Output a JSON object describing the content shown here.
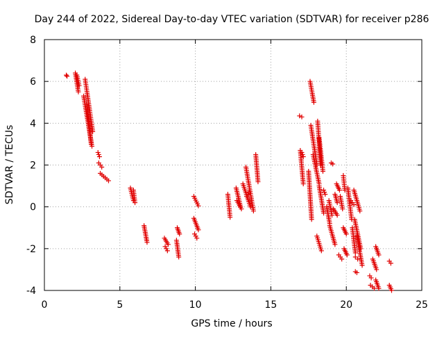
{
  "chart_data": {
    "type": "scatter",
    "title": "Day 244 of 2022, Sidereal Day-to-day VTEC variation (SDTVAR) for receiver p286",
    "xlabel": "GPS time / hours",
    "ylabel": "SDTVAR / TECUs",
    "xlim": [
      0,
      25
    ],
    "ylim": [
      -4,
      8
    ],
    "x_ticks": [
      0,
      5,
      10,
      15,
      20,
      25
    ],
    "y_ticks": [
      -4,
      -2,
      0,
      2,
      4,
      6,
      8
    ],
    "grid": true,
    "marker": "plus",
    "color": "#e00000",
    "series": [
      {
        "name": "SDTVAR",
        "segments": [
          {
            "x": [
              1.45,
              1.5
            ],
            "y": [
              6.3,
              6.25
            ]
          },
          {
            "x": [
              2.05,
              2.25
            ],
            "y": [
              6.4,
              5.5
            ]
          },
          {
            "x": [
              2.15,
              2.3
            ],
            "y": [
              6.3,
              5.8
            ]
          },
          {
            "x": [
              2.6,
              3.15
            ],
            "y": [
              5.3,
              2.9
            ]
          },
          {
            "x": [
              2.7,
              3.2
            ],
            "y": [
              6.1,
              3.6
            ]
          },
          {
            "x": [
              2.8,
              3.1
            ],
            "y": [
              4.9,
              3.0
            ]
          },
          {
            "x": [
              3.55,
              3.65
            ],
            "y": [
              2.6,
              2.4
            ]
          },
          {
            "x": [
              3.6,
              3.8
            ],
            "y": [
              2.1,
              1.9
            ]
          },
          {
            "x": [
              3.7,
              4.25
            ],
            "y": [
              1.6,
              1.25
            ]
          },
          {
            "x": [
              5.7,
              5.9
            ],
            "y": [
              0.9,
              0.3
            ]
          },
          {
            "x": [
              5.9,
              6.0
            ],
            "y": [
              0.8,
              0.2
            ]
          },
          {
            "x": [
              6.6,
              6.8
            ],
            "y": [
              -0.9,
              -1.7
            ]
          },
          {
            "x": [
              7.95,
              8.2
            ],
            "y": [
              -1.5,
              -1.8
            ]
          },
          {
            "x": [
              8.0,
              8.15
            ],
            "y": [
              -1.9,
              -2.1
            ]
          },
          {
            "x": [
              8.75,
              8.9
            ],
            "y": [
              -1.6,
              -2.4
            ]
          },
          {
            "x": [
              8.8,
              8.95
            ],
            "y": [
              -1.0,
              -1.3
            ]
          },
          {
            "x": [
              9.9,
              10.2
            ],
            "y": [
              0.5,
              0.05
            ]
          },
          {
            "x": [
              9.9,
              10.2
            ],
            "y": [
              -0.55,
              -1.1
            ]
          },
          {
            "x": [
              9.95,
              10.1
            ],
            "y": [
              -1.3,
              -1.5
            ]
          },
          {
            "x": [
              12.15,
              12.3
            ],
            "y": [
              0.6,
              -0.5
            ]
          },
          {
            "x": [
              12.7,
              13.0
            ],
            "y": [
              0.9,
              0.0
            ]
          },
          {
            "x": [
              12.75,
              13.05
            ],
            "y": [
              0.3,
              -0.1
            ]
          },
          {
            "x": [
              13.15,
              13.65
            ],
            "y": [
              1.1,
              0.0
            ]
          },
          {
            "x": [
              13.35,
              13.85
            ],
            "y": [
              1.9,
              -0.2
            ]
          },
          {
            "x": [
              13.4,
              13.55
            ],
            "y": [
              0.5,
              0.7
            ]
          },
          {
            "x": [
              14.0,
              14.15
            ],
            "y": [
              2.5,
              1.2
            ]
          },
          {
            "x": [
              16.9,
              17.05
            ],
            "y": [
              4.35,
              4.3
            ]
          },
          {
            "x": [
              16.95,
              17.15
            ],
            "y": [
              2.7,
              1.1
            ]
          },
          {
            "x": [
              17.05,
              17.15
            ],
            "y": [
              2.6,
              2.4
            ]
          },
          {
            "x": [
              17.5,
              17.7
            ],
            "y": [
              1.7,
              -0.6
            ]
          },
          {
            "x": [
              17.6,
              17.85
            ],
            "y": [
              6.0,
              5.0
            ]
          },
          {
            "x": [
              17.65,
              18.05
            ],
            "y": [
              3.9,
              2.0
            ]
          },
          {
            "x": [
              17.8,
              18.2
            ],
            "y": [
              2.5,
              1.1
            ]
          },
          {
            "x": [
              18.1,
              18.3
            ],
            "y": [
              4.1,
              2.0
            ]
          },
          {
            "x": [
              18.05,
              18.35
            ],
            "y": [
              -1.4,
              -2.1
            ]
          },
          {
            "x": [
              18.2,
              18.45
            ],
            "y": [
              3.3,
              1.7
            ]
          },
          {
            "x": [
              18.2,
              18.5
            ],
            "y": [
              1.0,
              -0.3
            ]
          },
          {
            "x": [
              18.5,
              18.6
            ],
            "y": [
              0.8,
              0.6
            ]
          },
          {
            "x": [
              18.7,
              18.9
            ],
            "y": [
              0.0,
              -0.8
            ]
          },
          {
            "x": [
              18.85,
              19.05
            ],
            "y": [
              0.3,
              -0.4
            ]
          },
          {
            "x": [
              18.9,
              19.25
            ],
            "y": [
              -0.9,
              -1.8
            ]
          },
          {
            "x": [
              19.0,
              19.1
            ],
            "y": [
              2.1,
              2.05
            ]
          },
          {
            "x": [
              19.15,
              19.4
            ],
            "y": [
              -0.1,
              -0.4
            ]
          },
          {
            "x": [
              19.25,
              19.4
            ],
            "y": [
              0.6,
              0.2
            ]
          },
          {
            "x": [
              19.35,
              19.55
            ],
            "y": [
              1.1,
              0.8
            ]
          },
          {
            "x": [
              19.5,
              19.7
            ],
            "y": [
              -2.3,
              -2.5
            ]
          },
          {
            "x": [
              19.6,
              19.75
            ],
            "y": [
              0.5,
              -0.1
            ]
          },
          {
            "x": [
              19.8,
              19.9
            ],
            "y": [
              1.5,
              0.8
            ]
          },
          {
            "x": [
              19.8,
              20.0
            ],
            "y": [
              -1.0,
              -1.3
            ]
          },
          {
            "x": [
              19.85,
              20.05
            ],
            "y": [
              -2.0,
              -2.3
            ]
          },
          {
            "x": [
              20.1,
              20.35
            ],
            "y": [
              0.9,
              -0.6
            ]
          },
          {
            "x": [
              20.3,
              20.5
            ],
            "y": [
              0.3,
              0.1
            ]
          },
          {
            "x": [
              20.4,
              20.6
            ],
            "y": [
              -1.0,
              -2.2
            ]
          },
          {
            "x": [
              20.5,
              20.9
            ],
            "y": [
              0.8,
              -0.2
            ]
          },
          {
            "x": [
              20.55,
              20.95
            ],
            "y": [
              -0.6,
              -2.0
            ]
          },
          {
            "x": [
              20.6,
              20.75
            ],
            "y": [
              -2.4,
              -2.5
            ]
          },
          {
            "x": [
              20.6,
              20.7
            ],
            "y": [
              -3.1,
              -3.15
            ]
          },
          {
            "x": [
              20.7,
              21.05
            ],
            "y": [
              -1.4,
              -2.8
            ]
          },
          {
            "x": [
              21.55,
              21.65
            ],
            "y": [
              -3.3,
              -3.4
            ]
          },
          {
            "x": [
              21.6,
              21.85
            ],
            "y": [
              -3.75,
              -3.9
            ]
          },
          {
            "x": [
              21.75,
              22.0
            ],
            "y": [
              -2.5,
              -3.0
            ]
          },
          {
            "x": [
              21.95,
              22.15
            ],
            "y": [
              -1.9,
              -2.3
            ]
          },
          {
            "x": [
              21.95,
              22.15
            ],
            "y": [
              -3.5,
              -3.9
            ]
          },
          {
            "x": [
              22.85,
              22.95
            ],
            "y": [
              -2.6,
              -2.7
            ]
          },
          {
            "x": [
              22.85,
              23.0
            ],
            "y": [
              -3.75,
              -4.0
            ]
          }
        ]
      }
    ]
  }
}
